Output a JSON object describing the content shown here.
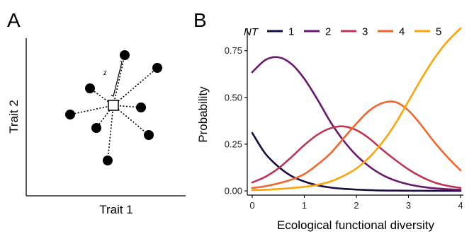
{
  "panel_a": {
    "letter": "A",
    "xlabel": "Trait 1",
    "ylabel": "Trait 2",
    "annotation": "z"
  },
  "chart_data": {
    "type": "line",
    "panel_letter": "B",
    "title": "",
    "xlabel": "Ecological functional diversity",
    "ylabel": "Probability",
    "xlim": [
      0,
      4
    ],
    "ylim": [
      0,
      0.87
    ],
    "x_ticks": [
      0,
      1,
      2,
      3,
      4
    ],
    "y_ticks": [
      0.0,
      0.25,
      0.5,
      0.75
    ],
    "y_tick_labels": [
      "0.00",
      "0.25",
      "0.50",
      "0.75"
    ],
    "x_tick_labels": [
      "0",
      "1",
      "2",
      "3",
      "4"
    ],
    "grid": false,
    "legend_position": "top",
    "legend_title": "NT",
    "x": [
      0,
      0.25,
      0.5,
      0.75,
      1.0,
      1.25,
      1.5,
      1.75,
      2.0,
      2.25,
      2.5,
      2.75,
      3.0,
      3.25,
      3.5,
      3.75,
      4.0
    ],
    "series": [
      {
        "name": "1",
        "color": "#1b0c41",
        "values": [
          0.31,
          0.2,
          0.13,
          0.08,
          0.05,
          0.03,
          0.018,
          0.011,
          0.007,
          0.004,
          0.002,
          0.0015,
          0.001,
          0.0005,
          0.0003,
          0.0002,
          0.0001
        ]
      },
      {
        "name": "2",
        "color": "#6a176e",
        "values": [
          0.635,
          0.7,
          0.715,
          0.68,
          0.6,
          0.49,
          0.37,
          0.27,
          0.19,
          0.13,
          0.085,
          0.055,
          0.035,
          0.022,
          0.014,
          0.009,
          0.006
        ]
      },
      {
        "name": "3",
        "color": "#bc3754",
        "values": [
          0.045,
          0.075,
          0.12,
          0.18,
          0.245,
          0.3,
          0.335,
          0.345,
          0.325,
          0.28,
          0.22,
          0.165,
          0.115,
          0.075,
          0.045,
          0.027,
          0.016
        ]
      },
      {
        "name": "4",
        "color": "#f1662c",
        "values": [
          0.015,
          0.025,
          0.04,
          0.06,
          0.09,
          0.14,
          0.2,
          0.28,
          0.36,
          0.43,
          0.47,
          0.475,
          0.43,
          0.35,
          0.26,
          0.18,
          0.11
        ]
      },
      {
        "name": "5",
        "color": "#fca50a",
        "values": [
          0.004,
          0.006,
          0.01,
          0.015,
          0.022,
          0.032,
          0.05,
          0.08,
          0.12,
          0.18,
          0.26,
          0.36,
          0.48,
          0.6,
          0.71,
          0.8,
          0.87
        ]
      }
    ]
  }
}
